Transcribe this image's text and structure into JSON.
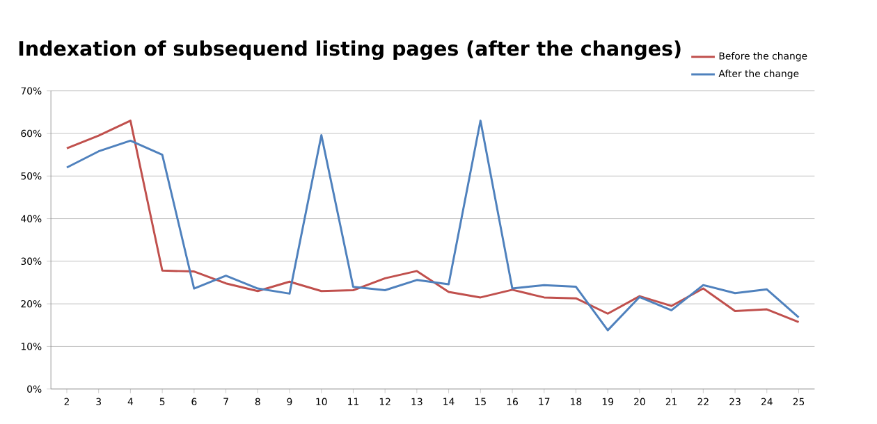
{
  "chart_data": {
    "type": "line",
    "title": "Indexation of subsequend listing pages (after the changes)",
    "categories": [
      "2",
      "3",
      "4",
      "5",
      "6",
      "7",
      "8",
      "9",
      "10",
      "11",
      "12",
      "13",
      "14",
      "15",
      "16",
      "17",
      "18",
      "19",
      "20",
      "21",
      "22",
      "23",
      "24",
      "25"
    ],
    "series": [
      {
        "name": "Before the change",
        "color": "#c0504d",
        "values": [
          56.5,
          59.5,
          63,
          27.8,
          27.6,
          24.8,
          23,
          25.2,
          23,
          23.2,
          26,
          27.7,
          22.8,
          21.5,
          23.3,
          21.5,
          21.3,
          17.7,
          21.8,
          19.5,
          23.6,
          18.3,
          18.7,
          15.7
        ]
      },
      {
        "name": "After the change",
        "color": "#4f81bd",
        "values": [
          52,
          55.8,
          58.3,
          55,
          23.6,
          26.6,
          23.6,
          22.4,
          59.6,
          24,
          23.2,
          25.6,
          24.6,
          63,
          23.6,
          24.4,
          24,
          13.8,
          21.6,
          18.5,
          24.4,
          22.5,
          23.4,
          16.8
        ]
      }
    ],
    "ylim": [
      0,
      70
    ],
    "yticks": [
      {
        "value": 0,
        "label": "0%"
      },
      {
        "value": 10,
        "label": "10%"
      },
      {
        "value": 20,
        "label": "20%"
      },
      {
        "value": 30,
        "label": "30%"
      },
      {
        "value": 40,
        "label": "40%"
      },
      {
        "value": 50,
        "label": "50%"
      },
      {
        "value": 60,
        "label": "60%"
      },
      {
        "value": 70,
        "label": "70%"
      }
    ],
    "grid": "y",
    "legend": "top right",
    "marker": "none",
    "line_style": "solid"
  }
}
